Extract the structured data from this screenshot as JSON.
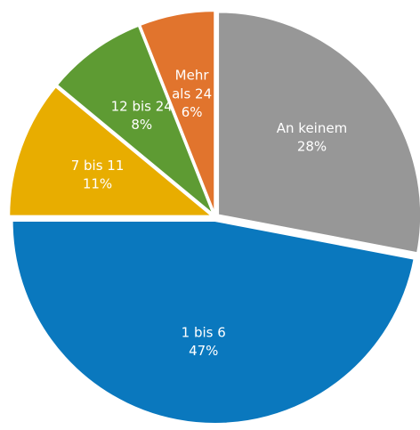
{
  "chart_data": {
    "type": "pie",
    "categories": [
      "An keinem",
      "1 bis 6",
      "7 bis 11",
      "12 bis 24",
      "Mehr als 24"
    ],
    "values": [
      28,
      47,
      11,
      8,
      6
    ],
    "value_labels": [
      "28%",
      "47%",
      "11%",
      "8%",
      "6%"
    ],
    "colors": [
      "#979797",
      "#0a78be",
      "#e8ad00",
      "#5e9b33",
      "#e1742d"
    ]
  }
}
